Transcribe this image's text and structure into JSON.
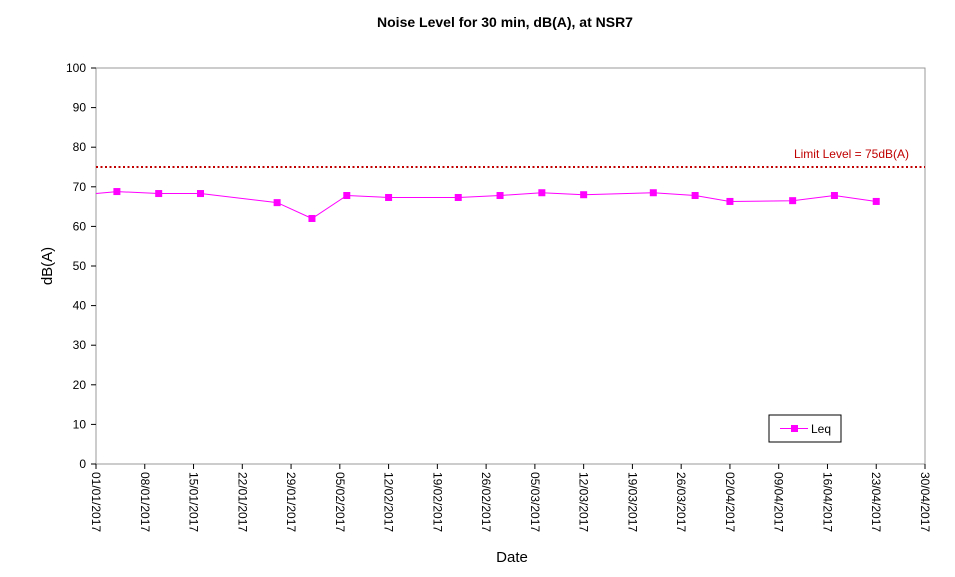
{
  "chart_data": {
    "type": "line",
    "title": "Noise Level for 30 min, dB(A), at NSR7",
    "xlabel": "Date",
    "ylabel": "dB(A)",
    "ylim": [
      0,
      100
    ],
    "yticks": [
      "0",
      "10",
      "20",
      "30",
      "40",
      "50",
      "60",
      "70",
      "80",
      "90",
      "100"
    ],
    "xlim": [
      "2017-01-01",
      "2017-04-30"
    ],
    "xticks": [
      "01/01/2017",
      "08/01/2017",
      "15/01/2017",
      "22/01/2017",
      "29/01/2017",
      "05/02/2017",
      "12/02/2017",
      "19/02/2017",
      "26/02/2017",
      "05/03/2017",
      "12/03/2017",
      "19/03/2017",
      "26/03/2017",
      "02/04/2017",
      "09/04/2017",
      "16/04/2017",
      "23/04/2017",
      "30/04/2017"
    ],
    "grid": false,
    "legend_position": "bottom-right",
    "series": [
      {
        "name": "Leq",
        "color": "#ff00ff",
        "marker": "square",
        "x": [
          "2017-01-04",
          "2017-01-10",
          "2017-01-16",
          "2017-01-27",
          "2017-02-01",
          "2017-02-06",
          "2017-02-12",
          "2017-02-22",
          "2017-02-28",
          "2017-03-06",
          "2017-03-12",
          "2017-03-22",
          "2017-03-28",
          "2017-04-02",
          "2017-04-11",
          "2017-04-17",
          "2017-04-23"
        ],
        "values": [
          68.8,
          68.3,
          68.3,
          66.0,
          62.0,
          67.8,
          67.3,
          67.3,
          67.8,
          68.5,
          68.0,
          68.5,
          67.8,
          66.3,
          66.5,
          67.8,
          66.3
        ]
      }
    ],
    "line_start": {
      "x": "2017-01-01",
      "value": 68.3
    },
    "limit_line": {
      "value": 75,
      "label": "Limit Level = 75dB(A)",
      "color": "#c00000"
    }
  }
}
